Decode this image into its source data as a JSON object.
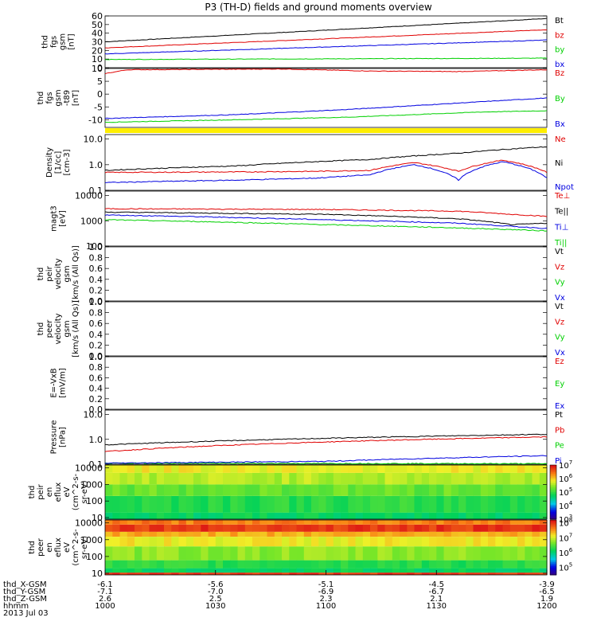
{
  "title": "P3 (TH-D) fields and ground moments overview",
  "colors": {
    "black": "#000000",
    "red": "#e00000",
    "green": "#00d000",
    "blue": "#0000e0",
    "yellow": "#ffee00"
  },
  "chart_data": [
    {
      "type": "line",
      "panel": "fgs-gsm-mag",
      "ylabel": [
        "thd",
        "fgs",
        "gsm",
        "[nT]"
      ],
      "ylim": [
        0,
        60
      ],
      "yscale": "linear",
      "yticks": [
        "0",
        "10",
        "20",
        "30",
        "40",
        "50",
        "60"
      ],
      "series": [
        {
          "name": "Bt",
          "color": "black",
          "x": [
            0,
            1
          ],
          "y": [
            30,
            57
          ]
        },
        {
          "name": "bz",
          "color": "red",
          "x": [
            0,
            1
          ],
          "y": [
            23,
            44
          ]
        },
        {
          "name": "by",
          "color": "green",
          "x": [
            0,
            1
          ],
          "y": [
            9.5,
            11
          ]
        },
        {
          "name": "bx",
          "color": "blue",
          "x": [
            0,
            1
          ],
          "y": [
            16,
            32
          ]
        }
      ]
    },
    {
      "type": "line",
      "panel": "fgs-gsm-components",
      "ylabel": [
        "thd",
        "fgs",
        "gsm",
        "-t89",
        "[nT]"
      ],
      "ylim": [
        -13,
        10
      ],
      "yscale": "linear",
      "yticks": [
        "-10",
        "-5",
        "0",
        "5",
        "10"
      ],
      "series": [
        {
          "name": "Bz",
          "color": "red",
          "x": [
            0,
            0.05,
            0.4,
            0.6,
            0.8,
            1
          ],
          "y": [
            8,
            9.5,
            9.8,
            9,
            8.8,
            9.5
          ]
        },
        {
          "name": "By",
          "color": "green",
          "x": [
            0,
            0.3,
            0.55,
            0.85,
            1
          ],
          "y": [
            -11,
            -10,
            -9,
            -7,
            -6.5
          ]
        },
        {
          "name": "Bx",
          "color": "blue",
          "x": [
            0,
            0.3,
            0.55,
            0.8,
            1
          ],
          "y": [
            -9.5,
            -8,
            -6,
            -3.5,
            -1.5
          ]
        }
      ]
    },
    {
      "type": "line",
      "panel": "density",
      "ylabel": [
        "Density",
        "[1/cc]",
        "[cm-3]"
      ],
      "ylim": [
        0.1,
        15
      ],
      "yscale": "log",
      "yticks": [
        "0.1",
        "1.0",
        "10.0"
      ],
      "series": [
        {
          "name": "Ne",
          "color": "red",
          "x": [
            0,
            0.3,
            0.48,
            0.6,
            0.7,
            0.8,
            0.9,
            1
          ],
          "y": [
            0.5,
            0.52,
            0.55,
            0.6,
            1.2,
            0.55,
            1.5,
            0.5
          ]
        },
        {
          "name": "Ni",
          "color": "black",
          "x": [
            0,
            0.3,
            0.6,
            0.8,
            1
          ],
          "y": [
            0.6,
            0.9,
            1.6,
            2.8,
            5
          ]
        },
        {
          "name": "Npot",
          "color": "blue",
          "x": [
            0,
            0.3,
            0.48,
            0.6,
            0.7,
            0.8,
            0.9,
            1
          ],
          "y": [
            0.2,
            0.25,
            0.3,
            0.4,
            1.0,
            0.25,
            1.3,
            0.3
          ]
        }
      ]
    },
    {
      "type": "line",
      "panel": "temperature",
      "ylabel": [
        "magt3",
        "[eV]"
      ],
      "ylim": [
        100,
        15000
      ],
      "yscale": "log",
      "yticks": [
        "100",
        "1000",
        "10000"
      ],
      "series": [
        {
          "name": "Te⊥",
          "color": "red",
          "x": [
            0,
            0.5,
            0.8,
            0.92,
            1
          ],
          "y": [
            3000,
            2800,
            2400,
            1800,
            1500
          ]
        },
        {
          "name": "Te||",
          "color": "black",
          "x": [
            0,
            0.5,
            0.8,
            0.92,
            1
          ],
          "y": [
            2200,
            1800,
            1200,
            700,
            800
          ]
        },
        {
          "name": "Ti⊥",
          "color": "blue",
          "x": [
            0,
            0.5,
            0.8,
            0.92,
            1
          ],
          "y": [
            1700,
            1100,
            800,
            600,
            500
          ]
        },
        {
          "name": "Ti||",
          "color": "green",
          "x": [
            0,
            0.5,
            1
          ],
          "y": [
            1100,
            700,
            400
          ]
        }
      ]
    },
    {
      "type": "line",
      "panel": "peir-velocity",
      "ylabel": [
        "thd",
        "peir",
        "velocity",
        "gsm",
        "[km/s (All Qs)]"
      ],
      "ylim": [
        0,
        1
      ],
      "yscale": "linear",
      "yticks": [
        "0.0",
        "0.2",
        "0.4",
        "0.6",
        "0.8",
        "1.0"
      ],
      "series": [
        {
          "name": "Vt",
          "color": "black"
        },
        {
          "name": "Vz",
          "color": "red"
        },
        {
          "name": "Vy",
          "color": "green"
        },
        {
          "name": "Vx",
          "color": "blue"
        }
      ]
    },
    {
      "type": "line",
      "panel": "peer-velocity",
      "ylabel": [
        "thd",
        "peer",
        "velocity",
        "gsm",
        "[km/s (All Qs)]"
      ],
      "ylim": [
        0,
        1
      ],
      "yscale": "linear",
      "yticks": [
        "0.0",
        "0.2",
        "0.4",
        "0.6",
        "0.8",
        "1.0"
      ],
      "series": [
        {
          "name": "Vt",
          "color": "black"
        },
        {
          "name": "Vz",
          "color": "red"
        },
        {
          "name": "Vy",
          "color": "green"
        },
        {
          "name": "Vx",
          "color": "blue"
        }
      ]
    },
    {
      "type": "line",
      "panel": "e-vxb",
      "ylabel": [
        "E=-VxB",
        "[mV/m]"
      ],
      "ylim": [
        0,
        1
      ],
      "yscale": "linear",
      "yticks": [
        "0.0",
        "0.2",
        "0.4",
        "0.6",
        "0.8",
        "1.0"
      ],
      "series": [
        {
          "name": "Ez",
          "color": "red"
        },
        {
          "name": "Ey",
          "color": "green"
        },
        {
          "name": "Ex",
          "color": "blue"
        }
      ]
    },
    {
      "type": "line",
      "panel": "pressure",
      "ylabel": [
        "Pressure",
        "[nPa]"
      ],
      "ylim": [
        0.1,
        15
      ],
      "yscale": "log",
      "yticks": [
        "0.1",
        "1.0",
        "10.0"
      ],
      "series": [
        {
          "name": "Pt",
          "color": "black",
          "x": [
            0,
            1
          ],
          "y": [
            0.6,
            1.6
          ]
        },
        {
          "name": "Pb",
          "color": "red",
          "x": [
            0,
            1
          ],
          "y": [
            0.32,
            1.25
          ]
        },
        {
          "name": "Pe",
          "color": "green",
          "x": [
            0,
            1
          ],
          "y": [
            0.11,
            0.105
          ]
        },
        {
          "name": "Pi",
          "color": "blue",
          "x": [
            0,
            0.5,
            1
          ],
          "y": [
            0.11,
            0.13,
            0.22
          ]
        }
      ]
    },
    {
      "type": "heatmap",
      "panel": "peir-energy-flux",
      "ylabel": [
        "thd",
        "peir",
        "en",
        "eflux",
        "eV",
        "(cm^2-s-",
        "sr-eV)"
      ],
      "ylim": [
        8,
        15000
      ],
      "yscale": "log",
      "yticks": [
        "10",
        "100",
        "1000",
        "10000"
      ],
      "colorbar": {
        "min_exp": 3,
        "max_exp": 7,
        "labels": [
          "3",
          "4",
          "5",
          "6",
          "7"
        ]
      },
      "bands": [
        {
          "y_from": 8,
          "y_to": 20,
          "level": 0.45
        },
        {
          "y_from": 20,
          "y_to": 200,
          "level": 0.5
        },
        {
          "y_from": 200,
          "y_to": 1000,
          "level": 0.58
        },
        {
          "y_from": 1000,
          "y_to": 5000,
          "level": 0.66
        },
        {
          "y_from": 5000,
          "y_to": 15000,
          "level": 0.72
        }
      ]
    },
    {
      "type": "heatmap",
      "panel": "peer-energy-flux",
      "ylabel": [
        "thd",
        "peer",
        "en",
        "eflux",
        "eV",
        "(cm^2-s-",
        "sr-eV)"
      ],
      "ylim": [
        8,
        15000
      ],
      "yscale": "log",
      "yticks": [
        "10",
        "100",
        "1000",
        "10000"
      ],
      "colorbar": {
        "min_exp": 4.5,
        "max_exp": 8.2,
        "labels": [
          "5",
          "6",
          "7",
          "8"
        ]
      },
      "bands": [
        {
          "y_from": 8,
          "y_to": 11,
          "level": 0.95
        },
        {
          "y_from": 11,
          "y_to": 20,
          "level": 0.45
        },
        {
          "y_from": 20,
          "y_to": 60,
          "level": 0.5
        },
        {
          "y_from": 60,
          "y_to": 400,
          "level": 0.62
        },
        {
          "y_from": 400,
          "y_to": 1500,
          "level": 0.72
        },
        {
          "y_from": 1500,
          "y_to": 3000,
          "level": 0.8
        },
        {
          "y_from": 3000,
          "y_to": 8000,
          "level": 0.95
        },
        {
          "y_from": 8000,
          "y_to": 15000,
          "level": 0.86
        }
      ]
    }
  ],
  "x_axis": {
    "rows": [
      {
        "label": "thd_X-GSM",
        "values": [
          "-6.1",
          "-5.6",
          "-5.1",
          "-4.5",
          "-3.9"
        ]
      },
      {
        "label": "thd_Y-GSM",
        "values": [
          "-7.1",
          "-7.0",
          "-6.9",
          "-6.7",
          "-6.5"
        ]
      },
      {
        "label": "thd_Z-GSM",
        "values": [
          "2.6",
          "2.5",
          "2.3",
          "2.1",
          "1.9"
        ]
      },
      {
        "label": "hhmm",
        "values": [
          "1000",
          "1030",
          "1100",
          "1130",
          "1200"
        ]
      }
    ],
    "date": "2013 Jul 03"
  }
}
